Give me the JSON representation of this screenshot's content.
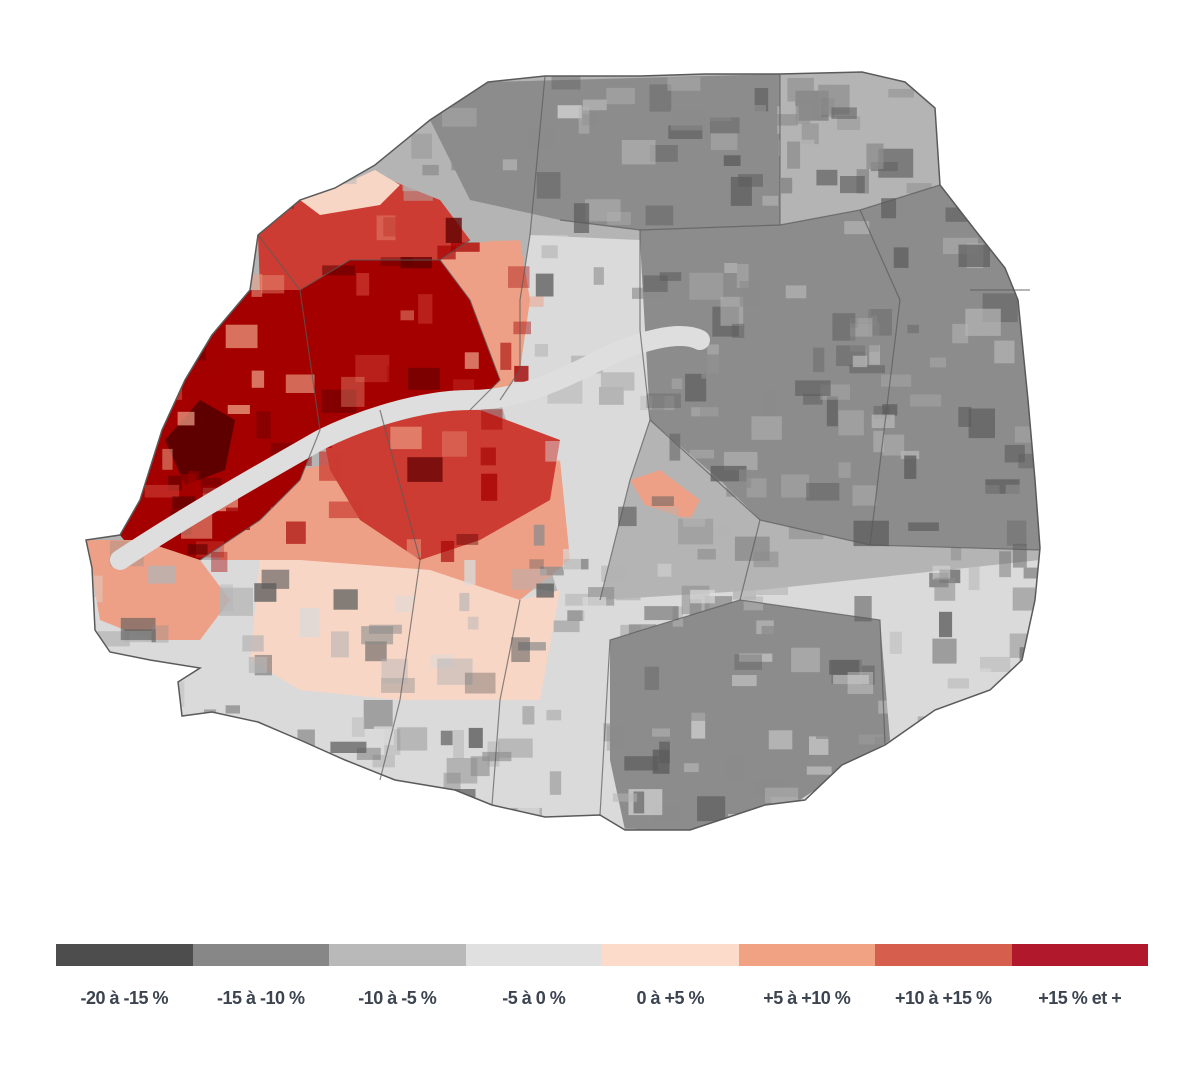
{
  "map": {
    "colors": {
      "outline": "#5a5a5a",
      "river": "#dedede",
      "red_dark": "#5e0000",
      "red_deep": "#a40000",
      "red_mid": "#cc3c32",
      "salmon": "#eda086",
      "peach": "#f8d6c6",
      "light_gray": "#dadada",
      "mid_gray": "#b4b4b4",
      "dark_gray": "#8c8c8c",
      "darkest": "#5c5c5c"
    }
  },
  "legend": {
    "items": [
      {
        "label": "-20 à -15 %",
        "color": "#4d4d4d"
      },
      {
        "label": "-15 à -10 %",
        "color": "#878787"
      },
      {
        "label": "-10 à -5 %",
        "color": "#b9b9b9"
      },
      {
        "label": "-5 à 0 %",
        "color": "#e0e0e0"
      },
      {
        "label": "0 à +5 %",
        "color": "#fcdbca"
      },
      {
        "label": "+5 à +10 %",
        "color": "#f1a283"
      },
      {
        "label": "+10 à +15 %",
        "color": "#d65e4d"
      },
      {
        "label": "+15 % et +",
        "color": "#b2182b"
      }
    ]
  }
}
